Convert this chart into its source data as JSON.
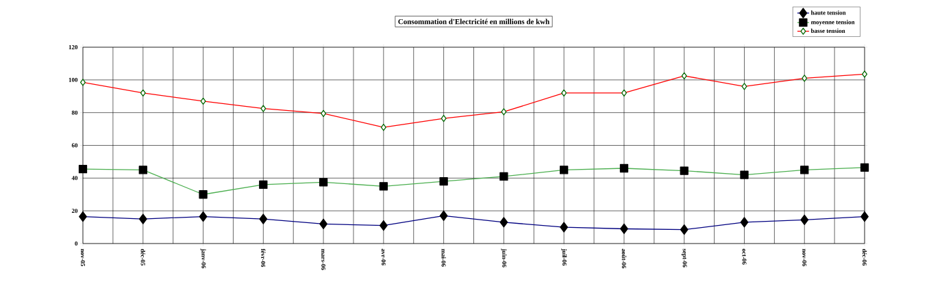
{
  "chart_data": {
    "type": "line",
    "title": "Consommation d'Electricité en millions de kwh",
    "categories": [
      "nov-05",
      "déc-05",
      "janv-06",
      "févr-06",
      "mars-06",
      "avr-06",
      "mai-06",
      "juin-06",
      "juil-06",
      "août-06",
      "sept-06",
      "oct-06",
      "nov-06",
      "déc-06"
    ],
    "series": [
      {
        "name": "haute tension",
        "color": "#000080",
        "marker": "diamond",
        "values": [
          16.5,
          15,
          16.5,
          15,
          12,
          11,
          17,
          13,
          10,
          9,
          8.5,
          13,
          14.5,
          16.5
        ]
      },
      {
        "name": "moyenne tension",
        "color": "#4caf50",
        "marker": "square",
        "values": [
          45.5,
          45,
          30,
          36,
          37.5,
          35,
          38,
          41,
          45,
          46,
          44.5,
          42,
          45,
          46.5
        ]
      },
      {
        "name": "basse tension",
        "color": "#ff0000",
        "marker": "diamond",
        "values": [
          98.5,
          92,
          87,
          82.5,
          79.5,
          71,
          76.5,
          80.5,
          92,
          92,
          102.5,
          96,
          101,
          103.5
        ]
      }
    ],
    "ylim": [
      0,
      120
    ],
    "yticks": [
      0,
      20,
      40,
      60,
      80,
      100,
      120
    ],
    "grid": true,
    "legend": "top right"
  }
}
